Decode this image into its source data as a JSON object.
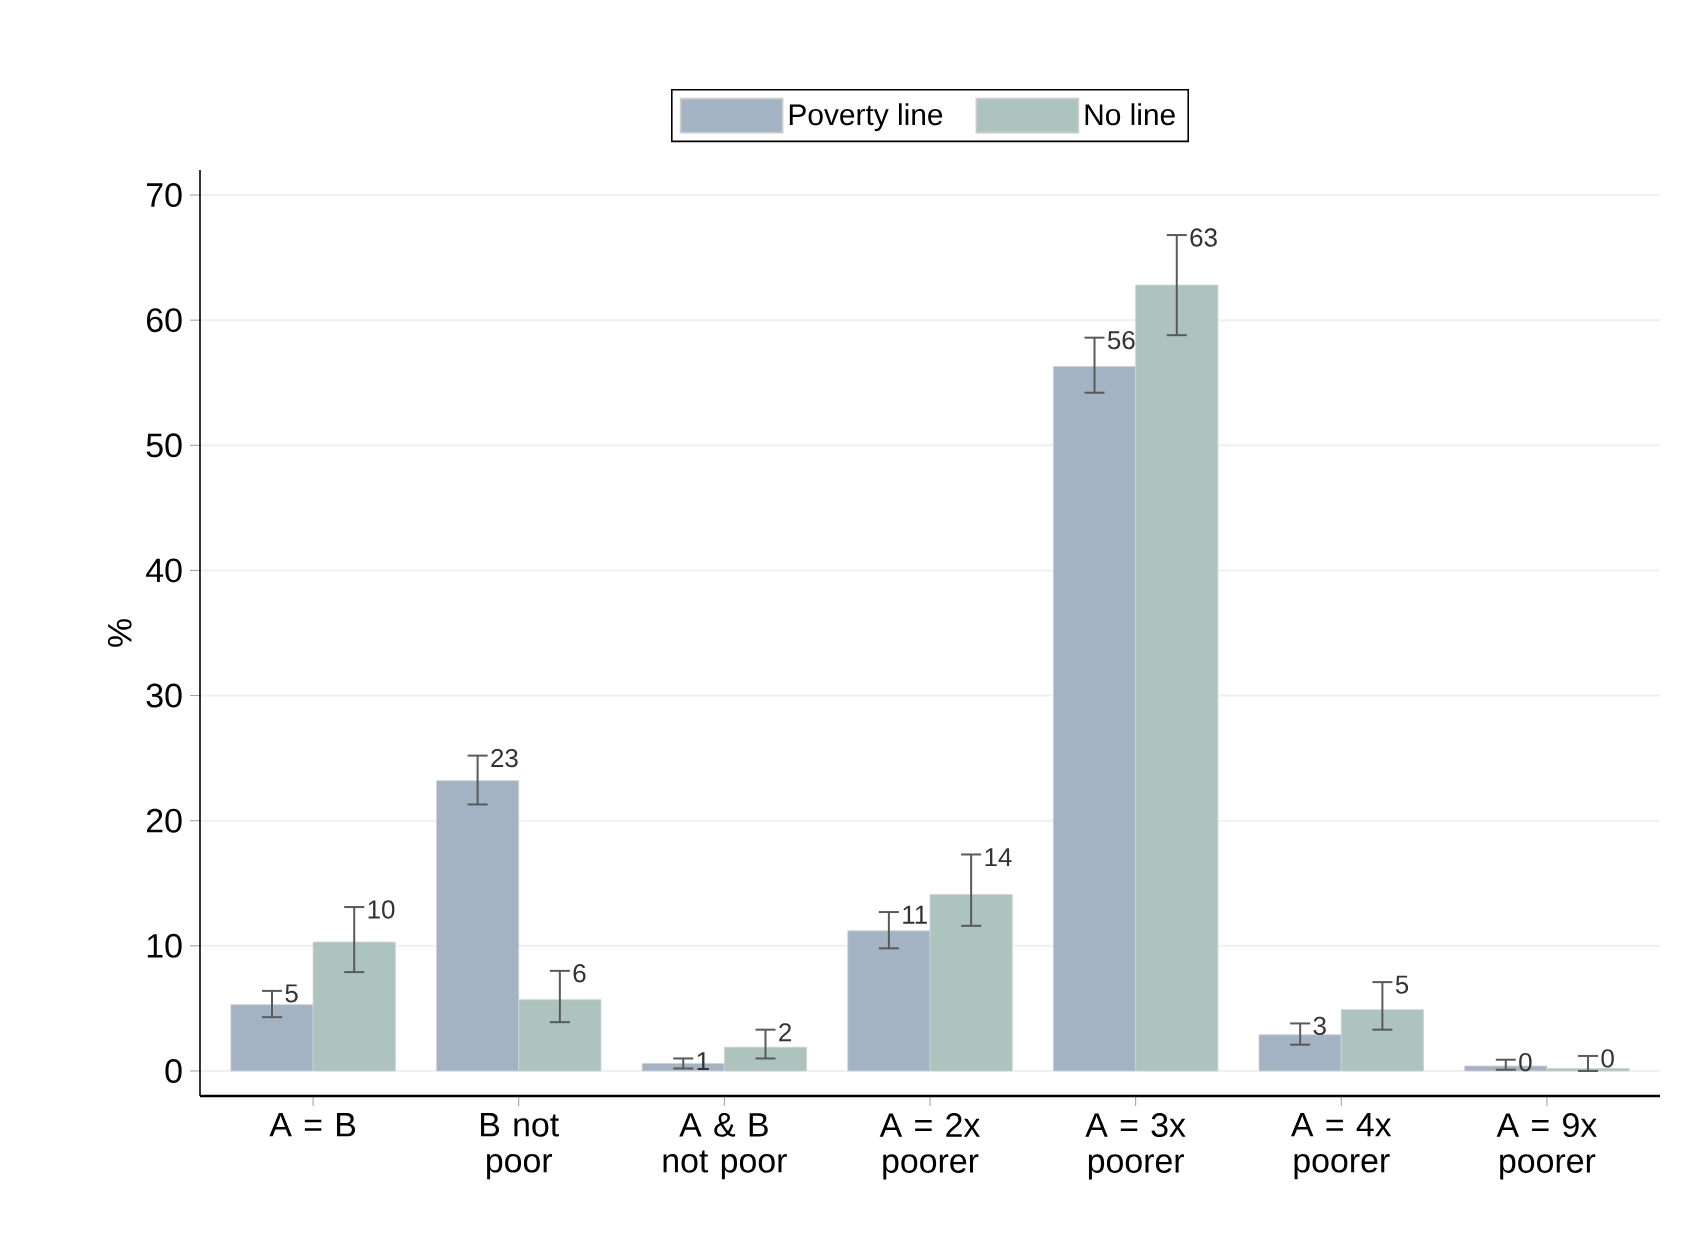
{
  "chart_data": {
    "type": "bar",
    "ylabel": "%",
    "categories": [
      "A = B",
      "B not poor",
      "A & B not poor",
      "A = 2x poorer",
      "A = 3x poorer",
      "A = 4x poorer",
      "A = 9x poorer"
    ],
    "series": [
      {
        "name": "Poverty line",
        "color": "#a4b3c4",
        "values": [
          5.3,
          23.2,
          0.6,
          11.2,
          56.3,
          2.9,
          0.4
        ],
        "errors": [
          [
            4.3,
            6.4
          ],
          [
            21.3,
            25.2
          ],
          [
            0.2,
            1.0
          ],
          [
            9.8,
            12.7
          ],
          [
            54.2,
            58.6
          ],
          [
            2.1,
            3.8
          ],
          [
            0.1,
            0.9
          ]
        ],
        "value_labels": [
          "5",
          "23",
          "1",
          "11",
          "56",
          "3",
          "0"
        ]
      },
      {
        "name": "No line",
        "color": "#adc4be",
        "values": [
          10.3,
          5.7,
          1.9,
          14.1,
          62.8,
          4.9,
          0.2
        ],
        "errors": [
          [
            7.9,
            13.1
          ],
          [
            3.9,
            8.0
          ],
          [
            1.0,
            3.3
          ],
          [
            11.6,
            17.3
          ],
          [
            58.8,
            66.8
          ],
          [
            3.3,
            7.1
          ],
          [
            0.0,
            1.2
          ]
        ],
        "value_labels": [
          "10",
          "6",
          "2",
          "14",
          "63",
          "5",
          "0"
        ]
      }
    ],
    "ylim": [
      -2,
      72
    ],
    "yticks": [
      0,
      10,
      20,
      30,
      40,
      50,
      60,
      70
    ],
    "grid": "y",
    "legend": "top"
  }
}
